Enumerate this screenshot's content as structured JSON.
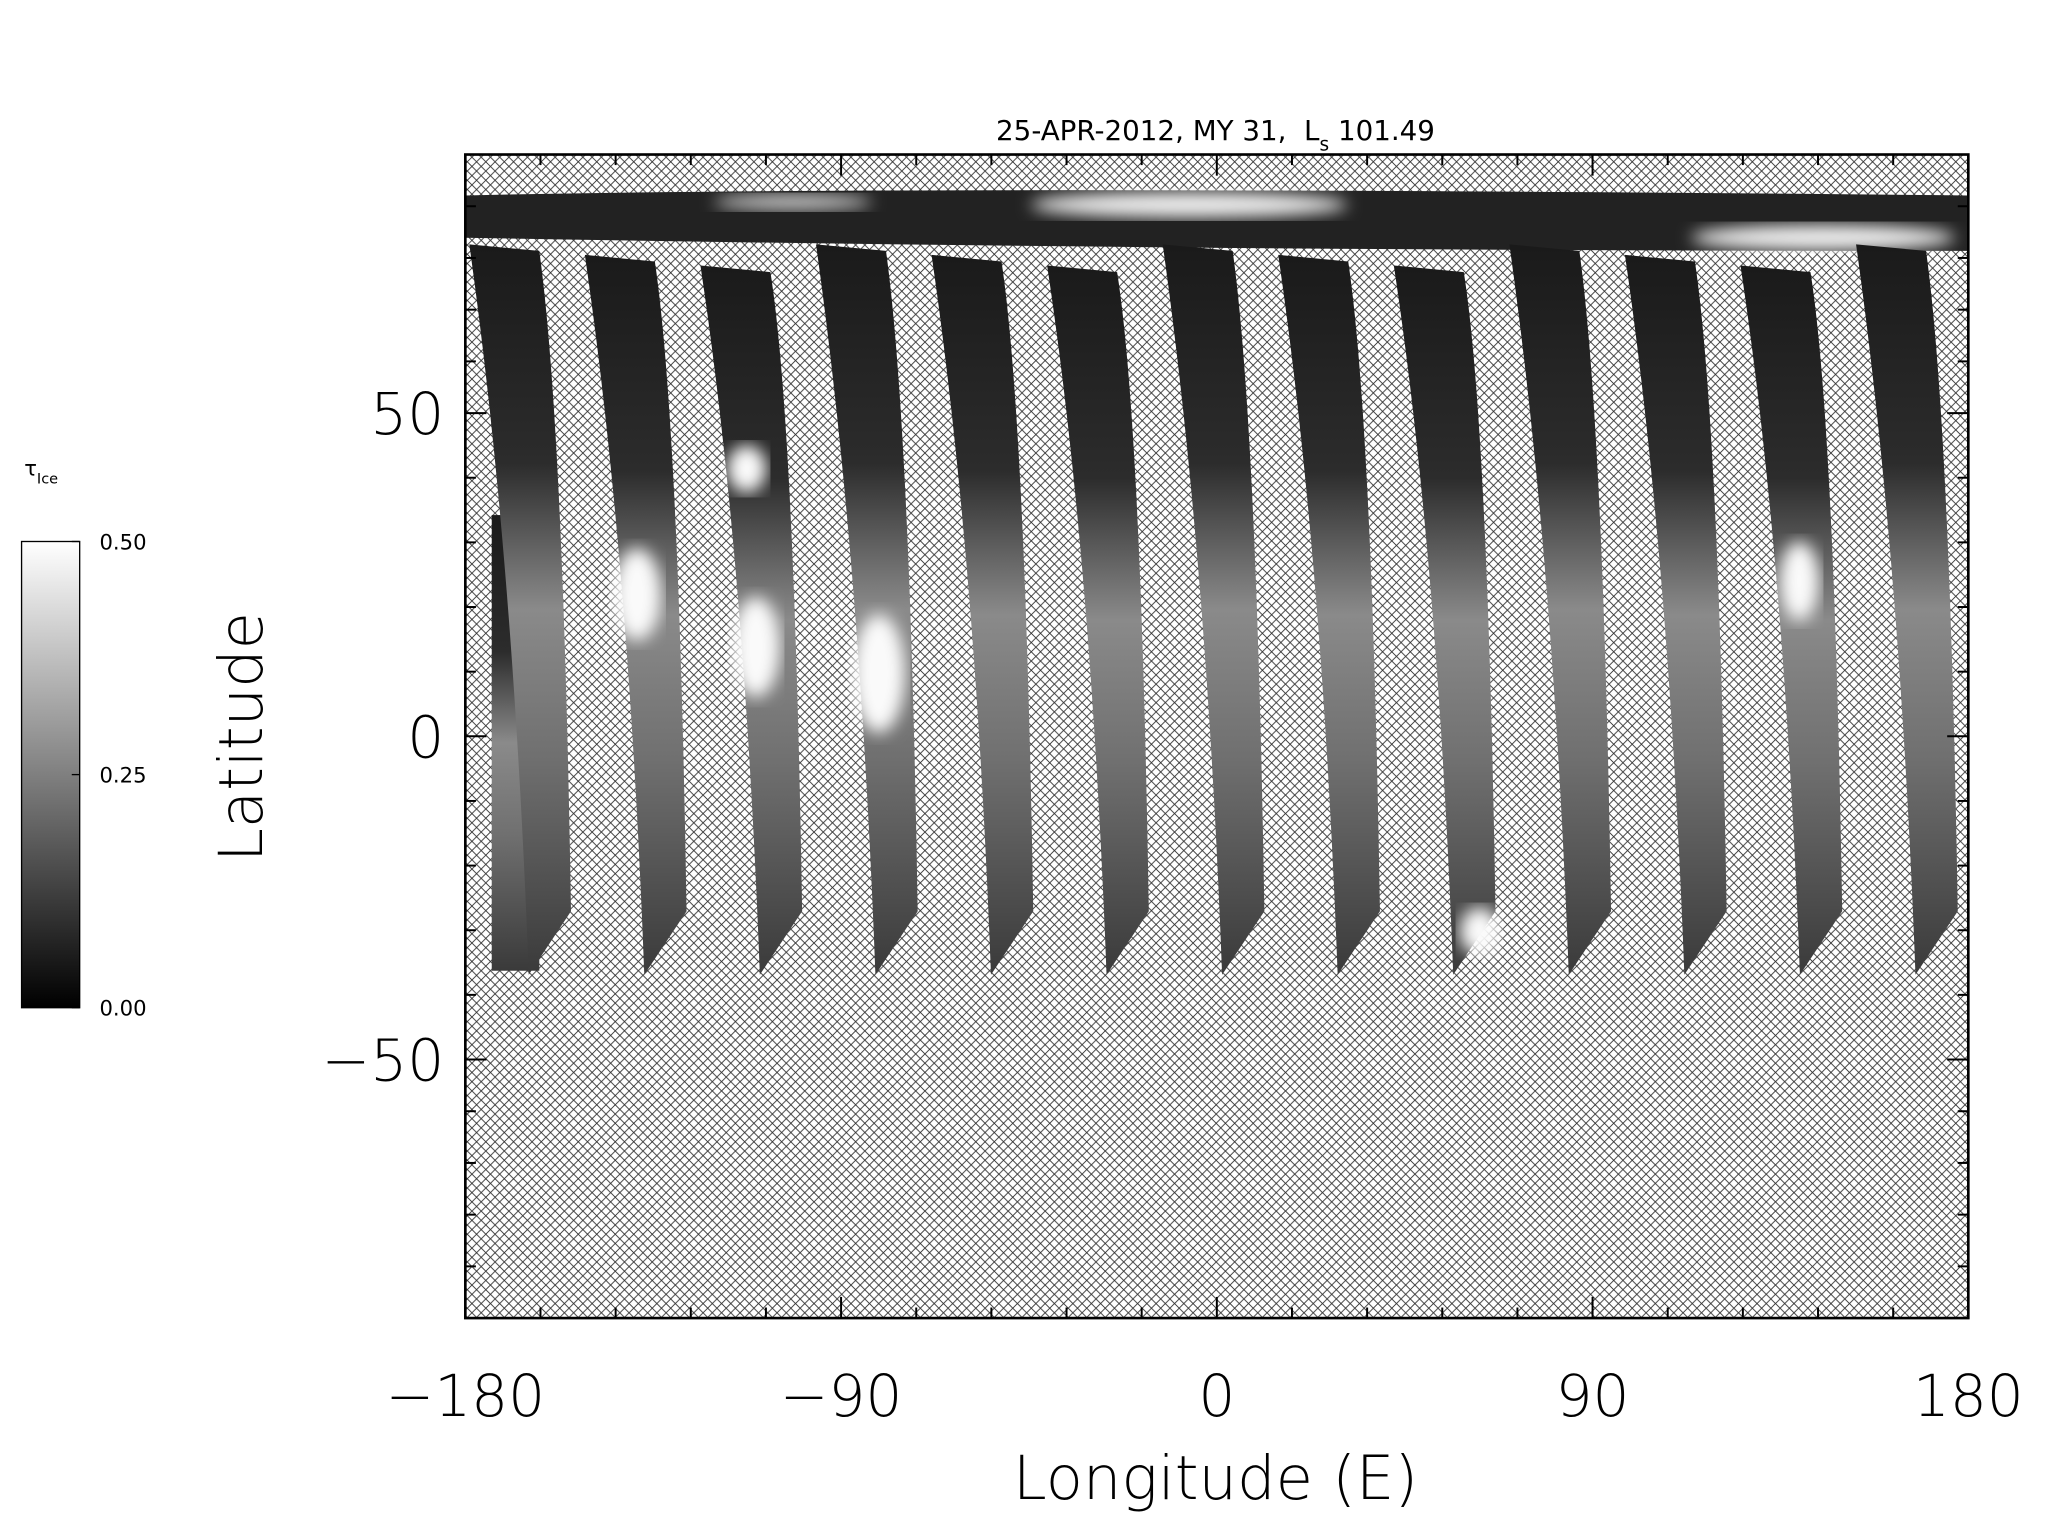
{
  "chart_data": {
    "type": "map",
    "title": {
      "main": "25-APR-2012, MY 31,  L",
      "subscript": "s",
      "value": "101.49"
    },
    "xlabel": "Longitude (E)",
    "ylabel": "Latitude",
    "xlim": [
      -180,
      180
    ],
    "ylim": [
      -90,
      90
    ],
    "xticks": [
      {
        "value": -180,
        "label": "−180"
      },
      {
        "value": -90,
        "label": "−90"
      },
      0,
      90,
      180
    ],
    "yticks": [
      {
        "value": -50,
        "label": "−50"
      },
      0,
      50
    ],
    "colorbar": {
      "label": "τ",
      "label_subscript": "Ice",
      "lim": [
        0,
        0.5
      ],
      "ticks": [
        {
          "value": 0,
          "label": "0.00"
        },
        {
          "value": 0.25,
          "label": "0.25"
        },
        {
          "value": 0.5,
          "label": "0.50"
        }
      ]
    }
  }
}
